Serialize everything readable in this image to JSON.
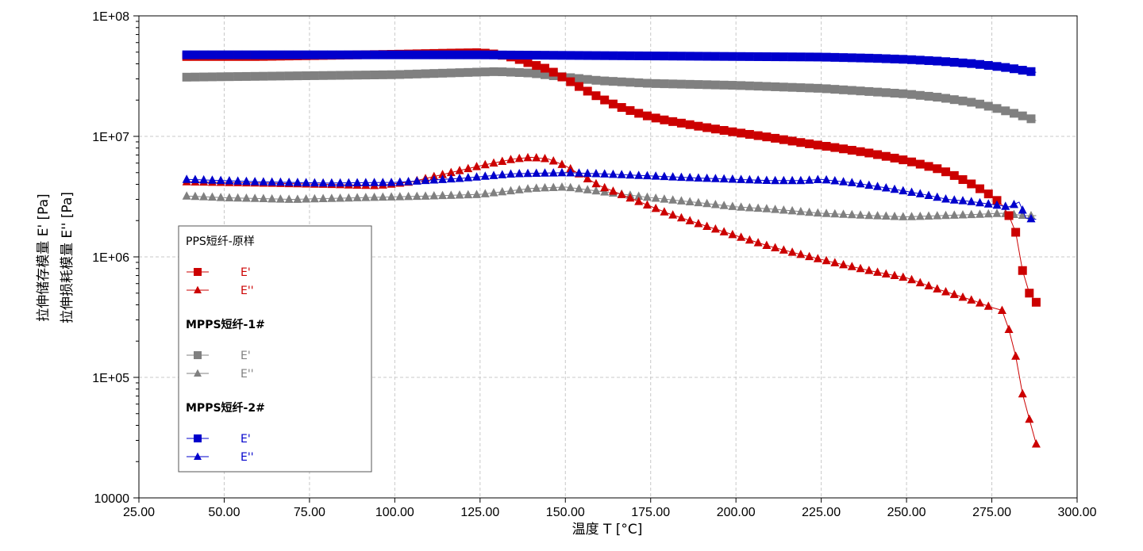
{
  "chart_data": {
    "type": "scatter",
    "title": "",
    "xlabel": "温度 T [°C]",
    "ylabels": [
      "拉伸储存模量 E' [Pa]",
      "拉伸损耗模量 E'' [Pa]"
    ],
    "xlim": [
      25,
      300
    ],
    "ylim": [
      10000,
      100000000
    ],
    "yscale": "log",
    "grid": true,
    "legend_position": "lower-left",
    "x_ticks": [
      "25.00",
      "50.00",
      "75.00",
      "100.00",
      "125.00",
      "150.00",
      "175.00",
      "200.00",
      "225.00",
      "250.00",
      "275.00",
      "300.00"
    ],
    "y_ticks": [
      "10000",
      "1E+05",
      "1E+06",
      "1E+07",
      "1E+08"
    ],
    "legend": {
      "groups": [
        {
          "title": "PPS短纤-原样",
          "bold": false,
          "entries": [
            {
              "label": "E'",
              "series": 0
            },
            {
              "label": "E''",
              "series": 1
            }
          ]
        },
        {
          "title": "MPPS短纤-1#",
          "bold": true,
          "entries": [
            {
              "label": "E'",
              "series": 2
            },
            {
              "label": "E''",
              "series": 3
            }
          ]
        },
        {
          "title": "MPPS短纤-2#",
          "bold": true,
          "entries": [
            {
              "label": "E'",
              "series": 4
            },
            {
              "label": "E''",
              "series": 5
            }
          ]
        }
      ]
    },
    "series": [
      {
        "group": "PPS短纤-原样",
        "name": "E'",
        "marker": "square",
        "color": "#cc0000",
        "x": [
          39,
          60,
          80,
          100,
          115,
          125,
          130,
          135,
          140,
          145,
          150,
          155,
          160,
          165,
          170,
          175,
          180,
          190,
          200,
          210,
          220,
          230,
          240,
          250,
          260,
          265,
          270,
          275,
          278,
          280,
          282,
          284,
          286,
          288
        ],
        "y": [
          46000000,
          46000000,
          47000000,
          48000000,
          49000000,
          49500000,
          48000000,
          45000000,
          40000000,
          36000000,
          30000000,
          25000000,
          21000000,
          18000000,
          16000000,
          14500000,
          13500000,
          12000000,
          10800000,
          9800000,
          8800000,
          8000000,
          7200000,
          6300000,
          5300000,
          4600000,
          3900000,
          3200000,
          2700000,
          2200000,
          1600000,
          770000,
          500000,
          420000
        ]
      },
      {
        "group": "PPS短纤-原样",
        "name": "E''",
        "marker": "triangle",
        "color": "#cc0000",
        "x": [
          39,
          60,
          80,
          95,
          105,
          115,
          125,
          135,
          140,
          145,
          150,
          155,
          160,
          170,
          180,
          190,
          200,
          210,
          220,
          230,
          240,
          250,
          260,
          270,
          275,
          278,
          280,
          282,
          284,
          286,
          288
        ],
        "y": [
          4200000,
          4100000,
          4000000,
          3900000,
          4200000,
          4900000,
          5700000,
          6500000,
          6700000,
          6500000,
          5700000,
          4700000,
          3900000,
          3000000,
          2300000,
          1850000,
          1500000,
          1220000,
          1030000,
          880000,
          760000,
          670000,
          530000,
          430000,
          380000,
          360000,
          250000,
          150000,
          73000,
          45000,
          28000
        ]
      },
      {
        "group": "MPPS短纤-1#",
        "name": "E'",
        "marker": "square",
        "color": "#808080",
        "x": [
          39,
          60,
          80,
          100,
          115,
          130,
          140,
          150,
          160,
          175,
          200,
          225,
          250,
          260,
          270,
          275,
          280,
          285,
          288
        ],
        "y": [
          31000000,
          31500000,
          32000000,
          32500000,
          33500000,
          34500000,
          33500000,
          31000000,
          29000000,
          27500000,
          26500000,
          25000000,
          22500000,
          21000000,
          19000000,
          17500000,
          16000000,
          14500000,
          13500000
        ]
      },
      {
        "group": "MPPS短纤-1#",
        "name": "E''",
        "marker": "triangle",
        "color": "#808080",
        "x": [
          39,
          50,
          70,
          90,
          110,
          125,
          140,
          150,
          160,
          175,
          190,
          200,
          210,
          225,
          240,
          250,
          260,
          270,
          278,
          285,
          288
        ],
        "y": [
          3200000,
          3100000,
          3000000,
          3100000,
          3200000,
          3300000,
          3700000,
          3800000,
          3500000,
          3100000,
          2800000,
          2600000,
          2500000,
          2300000,
          2200000,
          2150000,
          2200000,
          2250000,
          2300000,
          2200000,
          2200000
        ]
      },
      {
        "group": "MPPS短纤-2#",
        "name": "E'",
        "marker": "square",
        "color": "#0000cc",
        "x": [
          39,
          60,
          80,
          100,
          125,
          150,
          175,
          200,
          225,
          240,
          250,
          260,
          270,
          275,
          280,
          285,
          288
        ],
        "y": [
          47500000,
          47500000,
          47500000,
          47500000,
          47500000,
          47000000,
          46500000,
          46000000,
          45500000,
          44500000,
          43500000,
          42000000,
          40000000,
          38500000,
          37000000,
          35000000,
          34000000
        ]
      },
      {
        "group": "MPPS短纤-2#",
        "name": "E''",
        "marker": "triangle",
        "color": "#0000cc",
        "x": [
          39,
          60,
          80,
          100,
          120,
          135,
          150,
          160,
          175,
          190,
          200,
          210,
          220,
          225,
          235,
          245,
          255,
          262,
          268,
          272,
          276,
          280,
          283,
          285,
          288
        ],
        "y": [
          4400000,
          4200000,
          4100000,
          4150000,
          4500000,
          4900000,
          5000000,
          4900000,
          4700000,
          4500000,
          4400000,
          4300000,
          4300000,
          4400000,
          4100000,
          3700000,
          3300000,
          3000000,
          2900000,
          2800000,
          2700000,
          2600000,
          2850000,
          2100000,
          2050000
        ]
      }
    ]
  }
}
